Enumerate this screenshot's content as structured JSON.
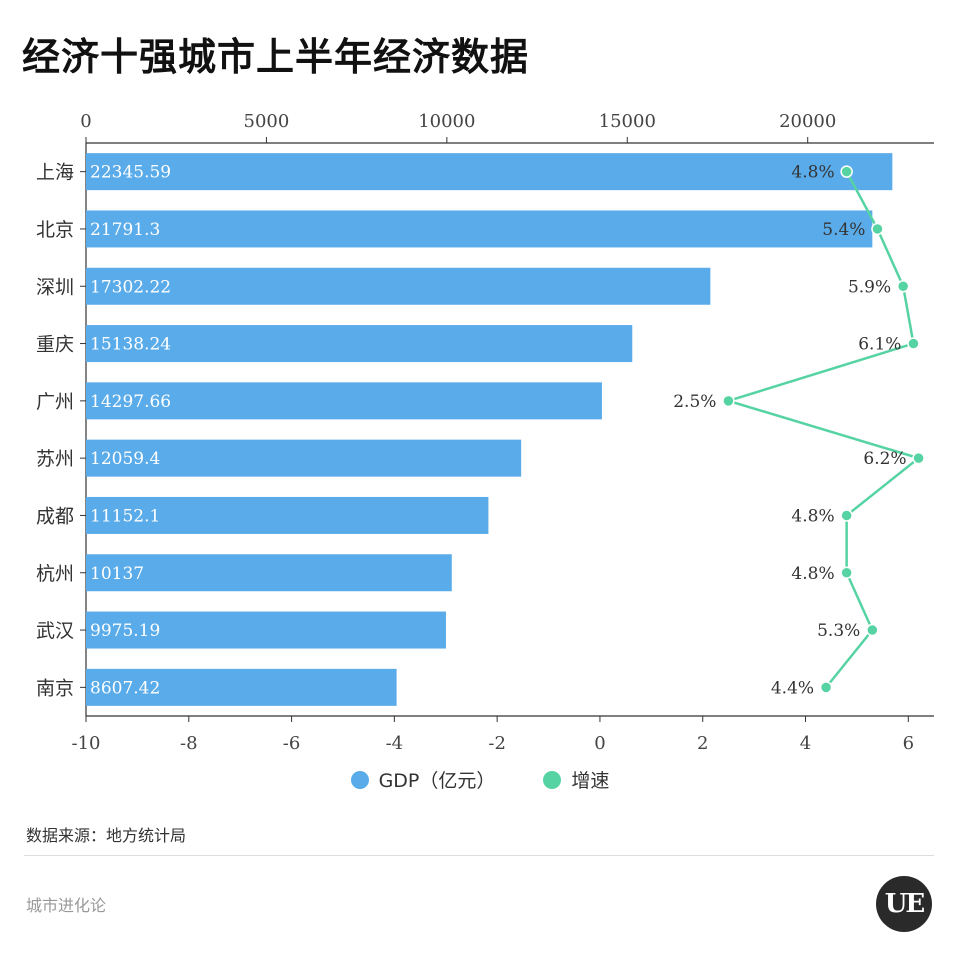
{
  "title": "经济十强城市上半年经济数据",
  "chart_data": {
    "type": "bar",
    "categories": [
      "上海",
      "北京",
      "深圳",
      "重庆",
      "广州",
      "苏州",
      "成都",
      "杭州",
      "武汉",
      "南京"
    ],
    "series": [
      {
        "name": "GDP（亿元）",
        "type": "bar",
        "values": [
          22345.59,
          21791.3,
          17302.22,
          15138.24,
          14297.66,
          12059.4,
          11152.1,
          10137,
          9975.19,
          8607.42
        ],
        "labels": [
          "22345.59",
          "21791.3",
          "17302.22",
          "15138.24",
          "14297.66",
          "12059.4",
          "11152.1",
          "10137",
          "9975.19",
          "8607.42"
        ],
        "color": "#5aabea"
      },
      {
        "name": "增速",
        "type": "line",
        "values": [
          4.8,
          5.4,
          5.9,
          6.1,
          2.5,
          6.2,
          4.8,
          4.8,
          5.3,
          4.4
        ],
        "labels": [
          "4.8%",
          "5.4%",
          "5.9%",
          "6.1%",
          "2.5%",
          "6.2%",
          "4.8%",
          "4.8%",
          "5.3%",
          "4.4%"
        ],
        "color": "#56d3a3"
      }
    ],
    "x_top": {
      "range": [
        0,
        23500
      ],
      "ticks": [
        0,
        5000,
        10000,
        15000,
        20000
      ]
    },
    "x_bottom": {
      "range": [
        -10,
        6.5
      ],
      "ticks": [
        -10,
        -8,
        -6,
        -4,
        -2,
        0,
        2,
        4,
        6
      ]
    },
    "legend_position": "bottom-center"
  },
  "legend": {
    "gdp_label": "GDP（亿元）",
    "rate_label": "增速"
  },
  "source": "数据来源：地方统计局",
  "footer": "城市进化论",
  "logo_text": "UE"
}
